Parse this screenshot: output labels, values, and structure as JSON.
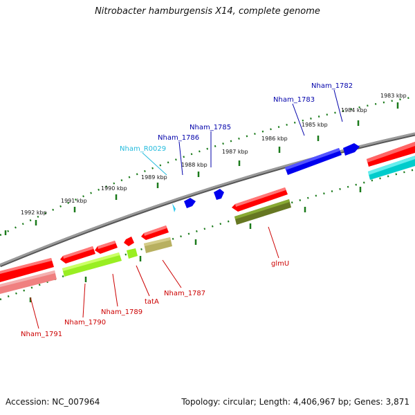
{
  "title": "Nitrobacter hamburgensis X14, complete genome",
  "footer": {
    "accession": "Accession: NC_007964",
    "topology": "Topology: circular; Length: 4,406,967 bp; Genes: 3,871"
  },
  "colors": {
    "backbone": "#808080",
    "ticks": "#1a7a1a",
    "label_red": "#cc0000",
    "label_blue": "#0000aa",
    "label_cyan": "#22bbdd",
    "cds_red": "#ff0000",
    "cds_pink": "#f08080",
    "cds_lime": "#99ee22",
    "cds_olive": "#667722",
    "cds_khaki": "#b8b060",
    "cds_blue": "#0000ee",
    "cds_cyan": "#00cccc",
    "trna_cyan": "#33ccee"
  },
  "tick_labels": [
    "1983 kbp",
    "1984 kbp",
    "1985 kbp",
    "1986 kbp",
    "1987 kbp",
    "1988 kbp",
    "1989 kbp",
    "1990 kbp",
    "1991 kbp",
    "1992 kbp"
  ],
  "gene_labels": {
    "nham_1782": "Nham_1782",
    "nham_1783": "Nham_1783",
    "nham_1785": "Nham_1785",
    "nham_1786": "Nham_1786",
    "nham_r0029": "Nham_R0029",
    "glmu": "glmU",
    "nham_1787": "Nham_1787",
    "tata": "tatA",
    "nham_1789": "Nham_1789",
    "nham_1790": "Nham_1790",
    "nham_1791": "Nham_1791"
  }
}
